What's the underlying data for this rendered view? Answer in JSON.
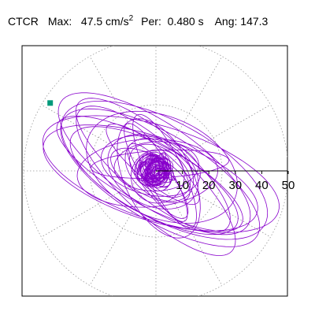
{
  "header": {
    "component": "CTCR",
    "max_label": "Max:",
    "max_value": "47.5",
    "max_unit_base": "cm/s",
    "max_unit_exp": "2",
    "per_label": "Per:",
    "per_value": "0.480 s",
    "ang_label": "Ang:",
    "ang_value": "147.3"
  },
  "chart_data": {
    "type": "polar-orbit",
    "r_max": 50,
    "r_ticks": [
      "10",
      "20",
      "30",
      "40",
      "50"
    ],
    "angular_grid_step_deg": 30,
    "grid": true,
    "peak": {
      "magnitude": 47.5,
      "angle_deg": 147.3
    },
    "orbit_major_axis_angle_deg": 150,
    "colors": {
      "trace": "#8800cc",
      "peak_marker": "#00997a",
      "grid": "#999999",
      "axes": "#000000"
    }
  }
}
